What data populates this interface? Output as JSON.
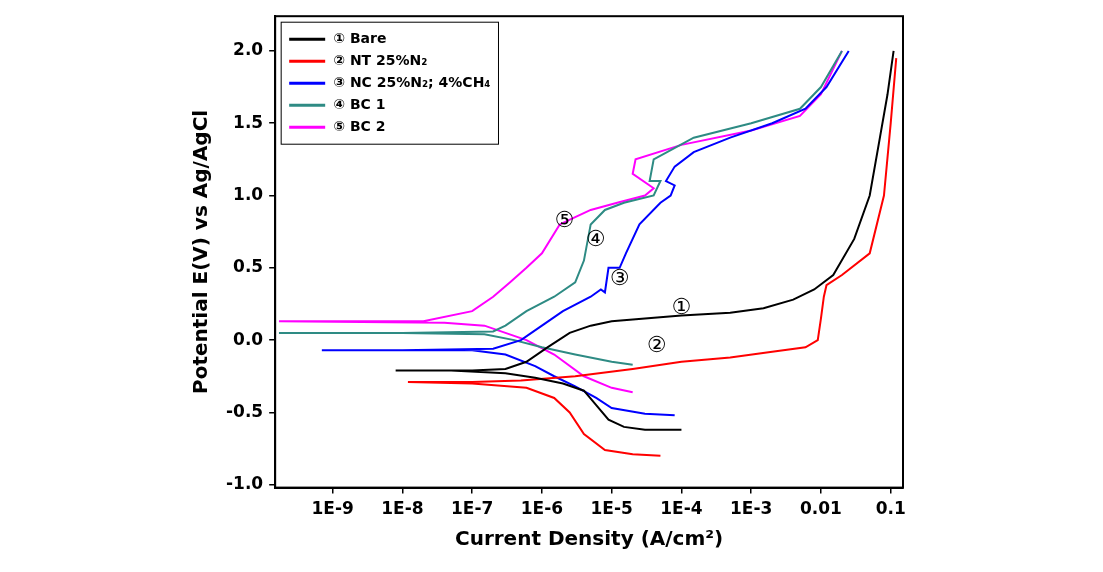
{
  "chart_data": {
    "type": "line",
    "x_label": "Current Density (A/cm²)",
    "y_label": "Potential E(V) vs Ag/AgCl",
    "log": "x",
    "grid": false,
    "legend": "upper left",
    "xlim": [
      1.5e-10,
      0.15
    ],
    "xticks": [
      {
        "value": 1e-09,
        "label": "1E-9"
      },
      {
        "value": 1e-08,
        "label": "1E-8"
      },
      {
        "value": 1e-07,
        "label": "1E-7"
      },
      {
        "value": 1e-06,
        "label": "1E-6"
      },
      {
        "value": 1e-05,
        "label": "1E-5"
      },
      {
        "value": 0.0001,
        "label": "1E-4"
      },
      {
        "value": 0.001,
        "label": "1E-3"
      },
      0.01,
      0.1
    ],
    "ylim": [
      -1.02,
      2.24
    ],
    "yticks": [
      {
        "value": -1,
        "label": "-1.0"
      },
      -0.5,
      {
        "value": 0,
        "label": "0.0"
      },
      0.5,
      {
        "value": 1,
        "label": "1.0"
      },
      1.5,
      {
        "value": 2,
        "label": "2.0"
      }
    ],
    "series": [
      {
        "name": "① Bare",
        "color": "#000000",
        "x": [
          0.0001,
          3e-05,
          1.5e-05,
          9e-06,
          6e-06,
          4e-06,
          2e-06,
          8e-07,
          3e-07,
          5e-08,
          8e-09,
          1e-07,
          3e-07,
          6e-07,
          1.2e-06,
          2.5e-06,
          5e-06,
          1e-05,
          3e-05,
          0.0001,
          0.0005,
          0.0015,
          0.004,
          0.008,
          0.015,
          0.03,
          0.05,
          0.07,
          0.09,
          0.11
        ],
        "values": [
          -0.62,
          -0.62,
          -0.6,
          -0.55,
          -0.45,
          -0.35,
          -0.3,
          -0.26,
          -0.23,
          -0.21,
          -0.21,
          -0.21,
          -0.2,
          -0.15,
          -0.05,
          0.05,
          0.1,
          0.13,
          0.15,
          0.17,
          0.19,
          0.22,
          0.28,
          0.35,
          0.45,
          0.7,
          1.0,
          1.4,
          1.7,
          2.0
        ]
      },
      {
        "name": "② NT 25%N₂",
        "color": "#ff0000",
        "x": [
          5e-05,
          2e-05,
          8e-06,
          4e-06,
          2.5e-06,
          1.5e-06,
          6e-07,
          1e-07,
          1.2e-08,
          1e-07,
          5e-07,
          3e-06,
          2e-05,
          0.0001,
          0.0005,
          0.002,
          0.006,
          0.009,
          0.01,
          0.011,
          0.012,
          0.02,
          0.05,
          0.08,
          0.1,
          0.12
        ],
        "values": [
          -0.8,
          -0.79,
          -0.76,
          -0.65,
          -0.5,
          -0.4,
          -0.33,
          -0.3,
          -0.29,
          -0.29,
          -0.28,
          -0.25,
          -0.2,
          -0.15,
          -0.12,
          -0.08,
          -0.05,
          0.0,
          0.15,
          0.3,
          0.38,
          0.45,
          0.6,
          1.0,
          1.5,
          1.95
        ]
      },
      {
        "name": "③ NC 25%N₂; 4%CH₄",
        "color": "#0000ff",
        "x": [
          8e-05,
          3e-05,
          1e-05,
          6e-06,
          3e-06,
          1.5e-06,
          8e-07,
          3e-07,
          1e-07,
          7e-10,
          1e-08,
          2e-07,
          5e-07,
          1e-06,
          2e-06,
          5e-06,
          7e-06,
          8e-06,
          9e-06,
          1.3e-05,
          1.6e-05,
          2.5e-05,
          5e-05,
          7e-05,
          8e-05,
          6e-05,
          8e-05,
          0.00015,
          0.0005,
          0.002,
          0.006,
          0.012,
          0.025
        ],
        "values": [
          -0.52,
          -0.51,
          -0.47,
          -0.4,
          -0.32,
          -0.25,
          -0.18,
          -0.1,
          -0.07,
          -0.07,
          -0.07,
          -0.06,
          0.0,
          0.1,
          0.2,
          0.3,
          0.35,
          0.33,
          0.5,
          0.5,
          0.6,
          0.8,
          0.95,
          1.0,
          1.07,
          1.1,
          1.2,
          1.3,
          1.4,
          1.5,
          1.6,
          1.75,
          2.0
        ]
      },
      {
        "name": "④ BC 1",
        "color": "#2e8b84",
        "x": [
          2e-05,
          1e-05,
          3e-06,
          1e-06,
          4e-07,
          1.5e-07,
          1e-08,
          1.7e-10,
          1e-08,
          2e-07,
          3e-07,
          6e-07,
          1.5e-06,
          3e-06,
          4e-06,
          5e-06,
          8e-06,
          1.5e-05,
          4e-05,
          5e-05,
          3.5e-05,
          4e-05,
          0.00015,
          0.001,
          0.005,
          0.01,
          0.02
        ],
        "values": [
          -0.17,
          -0.15,
          -0.1,
          -0.05,
          0.0,
          0.04,
          0.05,
          0.05,
          0.05,
          0.06,
          0.1,
          0.2,
          0.3,
          0.4,
          0.55,
          0.8,
          0.9,
          0.95,
          1.0,
          1.1,
          1.1,
          1.25,
          1.4,
          1.5,
          1.6,
          1.75,
          2.0
        ]
      },
      {
        "name": "⑤ BC 2",
        "color": "#ff00ff",
        "x": [
          2e-05,
          1e-05,
          4e-06,
          1.5e-06,
          6e-07,
          1.5e-07,
          4e-08,
          1.7e-10,
          2e-08,
          1e-07,
          2e-07,
          3.5e-07,
          6e-07,
          1e-06,
          1.8e-06,
          3e-06,
          5e-06,
          1.2e-05,
          3e-05,
          4e-05,
          2e-05,
          2.2e-05,
          0.0001,
          0.001,
          0.005,
          0.01,
          0.02
        ],
        "values": [
          -0.36,
          -0.33,
          -0.25,
          -0.1,
          0.0,
          0.1,
          0.12,
          0.13,
          0.13,
          0.2,
          0.3,
          0.4,
          0.5,
          0.6,
          0.8,
          0.85,
          0.9,
          0.95,
          1.0,
          1.05,
          1.15,
          1.25,
          1.35,
          1.45,
          1.55,
          1.7,
          2.0
        ]
      }
    ],
    "annotations": [
      {
        "text": "①",
        "x": 0.0001,
        "y": 0.22
      },
      {
        "text": "②",
        "x": 4.4e-05,
        "y": -0.04
      },
      {
        "text": "③",
        "x": 1.3e-05,
        "y": 0.42
      },
      {
        "text": "④",
        "x": 5.9e-06,
        "y": 0.69
      },
      {
        "text": "⑤",
        "x": 2.1e-06,
        "y": 0.82
      }
    ]
  }
}
